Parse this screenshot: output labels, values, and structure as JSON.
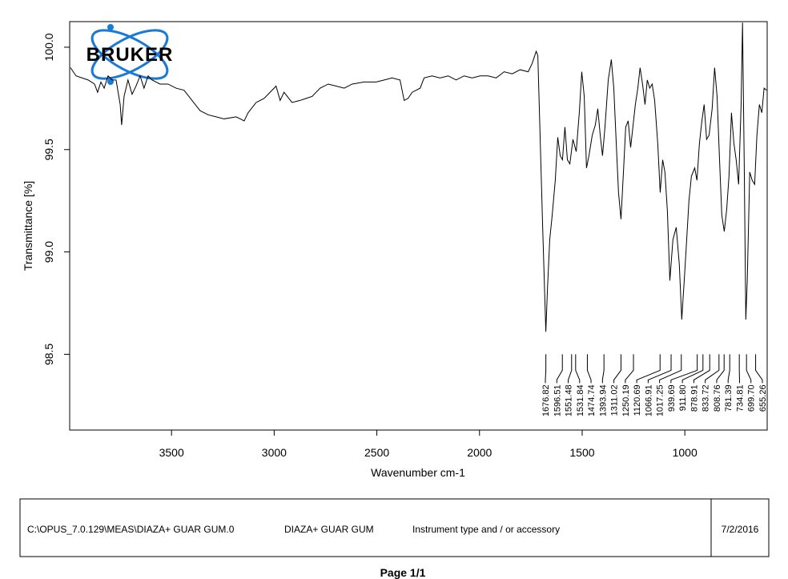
{
  "chart_data": {
    "type": "line",
    "logo": "BRUKER",
    "xlabel": "Wavenumber cm-1",
    "ylabel": "Transmittance [%]",
    "xlim": [
      3996,
      599
    ],
    "ylim": [
      98.13,
      100.125
    ],
    "xticks": [
      3500,
      3000,
      2500,
      2000,
      1500,
      1000
    ],
    "yticks": [
      {
        "value": 100,
        "label": "100.0"
      },
      {
        "value": 99.5,
        "label": "99.5"
      },
      {
        "value": 99,
        "label": "99.0"
      },
      {
        "value": 98.5,
        "label": "98.5"
      }
    ],
    "color": "#000000",
    "x": [
      3992,
      3965,
      3906,
      3875,
      3860,
      3844,
      3828,
      3809,
      3789,
      3770,
      3750,
      3743,
      3731,
      3712,
      3692,
      3673,
      3653,
      3634,
      3614,
      3595,
      3556,
      3517,
      3478,
      3439,
      3400,
      3361,
      3322,
      3283,
      3244,
      3185,
      3146,
      3127,
      3088,
      3049,
      3010,
      2991,
      2971,
      2952,
      2913,
      2874,
      2815,
      2776,
      2737,
      2698,
      2659,
      2620,
      2562,
      2503,
      2464,
      2426,
      2387,
      2367,
      2348,
      2328,
      2289,
      2270,
      2231,
      2192,
      2153,
      2114,
      2075,
      2036,
      1997,
      1958,
      1919,
      1880,
      1841,
      1802,
      1763,
      1744,
      1724,
      1716,
      1705,
      1693,
      1677,
      1669,
      1658,
      1646,
      1631,
      1619,
      1607,
      1596,
      1584,
      1572,
      1560,
      1545,
      1529,
      1514,
      1502,
      1490,
      1479,
      1467,
      1451,
      1436,
      1424,
      1412,
      1401,
      1389,
      1373,
      1358,
      1346,
      1334,
      1323,
      1311,
      1299,
      1288,
      1276,
      1264,
      1253,
      1241,
      1229,
      1218,
      1206,
      1194,
      1183,
      1171,
      1159,
      1147,
      1132,
      1120,
      1108,
      1097,
      1085,
      1073,
      1058,
      1042,
      1027,
      1015,
      1003,
      991,
      980,
      968,
      952,
      941,
      929,
      917,
      906,
      894,
      882,
      867,
      855,
      843,
      831,
      820,
      808,
      796,
      785,
      773,
      761,
      750,
      738,
      726,
      719,
      711,
      703,
      696,
      684,
      672,
      660,
      649,
      637,
      625,
      614,
      602
    ],
    "values": [
      99.9,
      99.86,
      99.84,
      99.82,
      99.78,
      99.83,
      99.8,
      99.86,
      99.84,
      99.84,
      99.72,
      99.62,
      99.76,
      99.84,
      99.77,
      99.81,
      99.86,
      99.8,
      99.86,
      99.84,
      99.82,
      99.82,
      99.8,
      99.79,
      99.74,
      99.69,
      99.67,
      99.66,
      99.65,
      99.66,
      99.64,
      99.68,
      99.73,
      99.75,
      99.79,
      99.81,
      99.74,
      99.78,
      99.73,
      99.74,
      99.76,
      99.8,
      99.82,
      99.81,
      99.8,
      99.82,
      99.83,
      99.83,
      99.84,
      99.85,
      99.84,
      99.74,
      99.75,
      99.78,
      99.8,
      99.85,
      99.86,
      99.85,
      99.86,
      99.84,
      99.86,
      99.85,
      99.86,
      99.86,
      99.85,
      99.88,
      99.87,
      99.89,
      99.88,
      99.92,
      99.98,
      99.96,
      99.57,
      99.14,
      98.61,
      98.82,
      99.06,
      99.18,
      99.35,
      99.56,
      99.47,
      99.45,
      99.61,
      99.45,
      99.43,
      99.55,
      99.49,
      99.68,
      99.88,
      99.76,
      99.41,
      99.47,
      99.57,
      99.62,
      99.7,
      99.57,
      99.47,
      99.61,
      99.84,
      99.94,
      99.8,
      99.53,
      99.29,
      99.16,
      99.39,
      99.61,
      99.64,
      99.51,
      99.61,
      99.72,
      99.8,
      99.9,
      99.82,
      99.72,
      99.84,
      99.8,
      99.82,
      99.74,
      99.53,
      99.29,
      99.45,
      99.39,
      99.2,
      98.86,
      99.06,
      99.12,
      98.94,
      98.67,
      98.86,
      99.06,
      99.25,
      99.37,
      99.41,
      99.35,
      99.53,
      99.64,
      99.72,
      99.55,
      99.57,
      99.7,
      99.9,
      99.76,
      99.45,
      99.18,
      99.1,
      99.21,
      99.37,
      99.68,
      99.53,
      99.45,
      99.33,
      99.72,
      100.12,
      99.45,
      98.67,
      98.86,
      99.39,
      99.35,
      99.33,
      99.57,
      99.72,
      99.68,
      99.8,
      99.79
    ],
    "peaks": [
      {
        "value": 1676.82,
        "label": "1676.82"
      },
      {
        "value": 1596.51,
        "label": "1596.51"
      },
      {
        "value": 1551.48,
        "label": "1551.48"
      },
      {
        "value": 1531.84,
        "label": "1531.84"
      },
      {
        "value": 1474.74,
        "label": "1474.74"
      },
      {
        "value": 1393.94,
        "label": "1393.94"
      },
      {
        "value": 1311.02,
        "label": "1311.02"
      },
      {
        "value": 1250.19,
        "label": "1250.19"
      },
      {
        "value": 1120.69,
        "label": "1120.69"
      },
      {
        "value": 1066.91,
        "label": "1066.91"
      },
      {
        "value": 1017.25,
        "label": "1017.25"
      },
      {
        "value": 939.69,
        "label": "939.69"
      },
      {
        "value": 911.8,
        "label": "911.80"
      },
      {
        "value": 878.91,
        "label": "878.91"
      },
      {
        "value": 833.72,
        "label": "833.72"
      },
      {
        "value": 808.76,
        "label": "808.76"
      },
      {
        "value": 781.39,
        "label": "781.39"
      },
      {
        "value": 734.81,
        "label": "734.81"
      },
      {
        "value": 699.7,
        "label": "699.70"
      },
      {
        "value": 655.26,
        "label": "655.26"
      }
    ]
  },
  "footer": {
    "file": "C:\\OPUS_7.0.129\\MEAS\\DIAZA+ GUAR GUM.0",
    "sample": "DIAZA+ GUAR GUM",
    "instrument": "Instrument type and / or accessory",
    "date": "7/2/2016",
    "page": "Page 1/1"
  }
}
